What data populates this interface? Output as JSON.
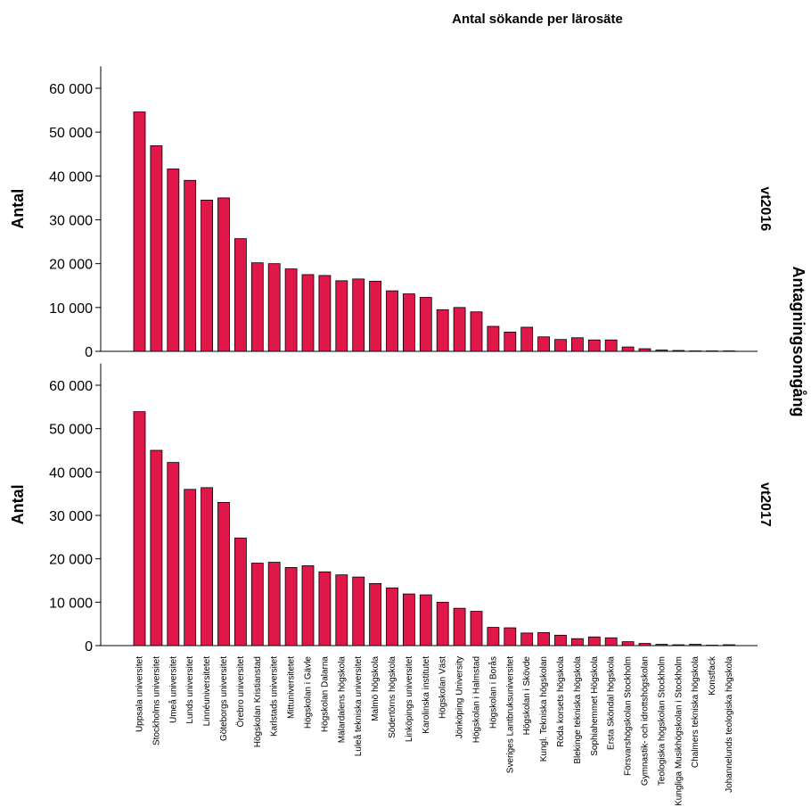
{
  "chart_data": {
    "type": "bar",
    "title": "Antal sökande per lärosäte",
    "ylabel": "Antal",
    "facet_title": "Antagningsomgång",
    "bar_color": "#e0184a",
    "ylim": [
      0,
      65000
    ],
    "yticks": [
      0,
      10000,
      20000,
      30000,
      40000,
      50000,
      60000
    ],
    "ytick_labels": [
      "0",
      "10 000",
      "20 000",
      "30 000",
      "40 000",
      "50 000",
      "60 000"
    ],
    "categories": [
      "Uppsala universitet",
      "Stockholms universitet",
      "Umeå universitet",
      "Lunds universitet",
      "Linnéuniversitetet",
      "Göteborgs universitet",
      "Örebro universitet",
      "Högskolan Kristianstad",
      "Karlstads universitet",
      "Mittuniversitetet",
      "Högskolan i Gävle",
      "Högskolan Dalarna",
      "Mälardalens högskola",
      "Luleå tekniska universitet",
      "Malmö högskola",
      "Södertörns högskola",
      "Linköpings universitet",
      "Karolinska institutet",
      "Högskolan Väst",
      "Jönköping University",
      "Högskolan i Halmstad",
      "Högskolan i Borås",
      "Sveriges Lantbruksuniversitet",
      "Högskolan i Skövde",
      "Kungl. Tekniska högskolan",
      "Röda korsets högskola",
      "Blekinge tekniska högskola",
      "Sophiahemmet Högskola",
      "Ersta Sköndal högskola",
      "Försvarshögskolan Stockholm",
      "Gymnastik- och idrottshögskolan",
      "Teologiska högskolan Stockholm",
      "Kungliga Musikhögskolan i Stockholm",
      "Chalmers tekniska högskola",
      "Konstfack",
      "Johannelunds teologiska högskola"
    ],
    "series": [
      {
        "name": "vt2016",
        "values": [
          54600,
          46900,
          41600,
          39000,
          34500,
          35000,
          25700,
          20200,
          20000,
          18800,
          17500,
          17300,
          16100,
          16500,
          16000,
          13800,
          13100,
          12300,
          9500,
          10000,
          9000,
          5700,
          4400,
          5500,
          3300,
          2700,
          3100,
          2600,
          2600,
          1000,
          600,
          300,
          200,
          100,
          100,
          100
        ]
      },
      {
        "name": "vt2017",
        "values": [
          53900,
          45000,
          42200,
          36000,
          36400,
          33000,
          24800,
          19000,
          19200,
          18000,
          18400,
          17000,
          16300,
          15800,
          14300,
          13300,
          11900,
          11700,
          10000,
          8600,
          7900,
          4200,
          4100,
          2900,
          3000,
          2400,
          1600,
          2000,
          1800,
          900,
          500,
          300,
          200,
          300,
          100,
          200
        ]
      }
    ]
  }
}
